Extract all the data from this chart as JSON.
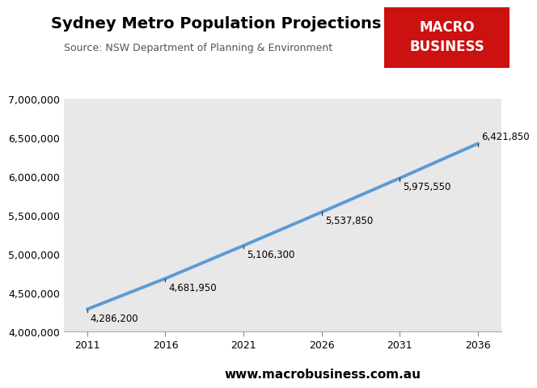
{
  "title": "Sydney Metro Population Projections",
  "source": "Source: NSW Department of Planning & Environment",
  "website": "www.macrobusiness.com.au",
  "years": [
    2011,
    2016,
    2021,
    2026,
    2031,
    2036
  ],
  "populations": [
    4286200,
    4681950,
    5106300,
    5537850,
    5975550,
    6421850
  ],
  "line_color": "#5B9BD5",
  "line_width": 2.8,
  "bg_plot": "#E8E8E8",
  "bg_fig": "#FFFFFF",
  "ylim": [
    4000000,
    7000000
  ],
  "xlim": [
    2009.5,
    2037.5
  ],
  "ytick_step": 500000,
  "annotation_fontsize": 8.5,
  "title_fontsize": 14,
  "source_fontsize": 9,
  "website_fontsize": 11,
  "macro_box_color": "#CC1111",
  "macro_text": "MACRO\nBUSINESS",
  "macro_text_color": "#FFFFFF",
  "macro_fontsize": 12,
  "tick_color": "#555555",
  "label_offsets": [
    [
      0.2,
      -50000,
      "left",
      "top"
    ],
    [
      0.3,
      -40000,
      "left",
      "top"
    ],
    [
      0.3,
      -30000,
      "left",
      "top"
    ],
    [
      0.3,
      -30000,
      "left",
      "top"
    ],
    [
      0.3,
      -30000,
      "left",
      "top"
    ],
    [
      0.3,
      30000,
      "left",
      "bottom"
    ]
  ]
}
